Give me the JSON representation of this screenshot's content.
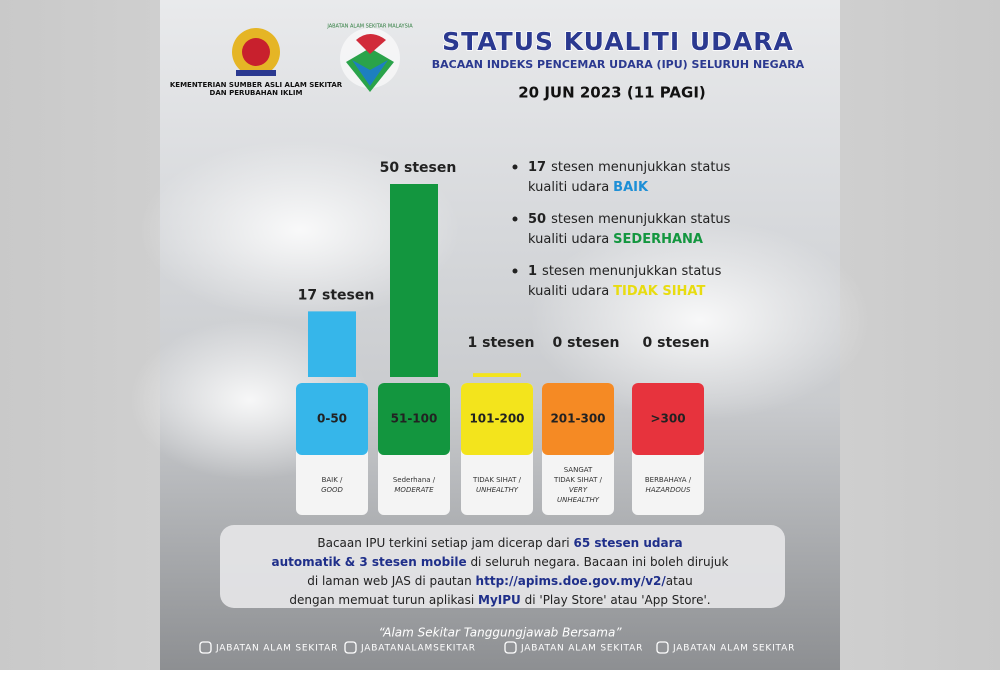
{
  "header": {
    "ministry": [
      "KEMENTERIAN SUMBER ASLI ALAM SEKITAR",
      "DAN PERUBAHAN IKLIM"
    ],
    "logo_ring_text": "JABATAN ALAM SEKITAR MALAYSIA",
    "title": "STATUS KUALITI UDARA",
    "subtitle": "BACAAN INDEKS PENCEMAR UDARA (IPU) SELURUH NEGARA",
    "date": "20 JUN 2023 (11 PAGI)"
  },
  "chart_data": {
    "type": "bar",
    "categories": [
      "0-50",
      "51-100",
      "101-200",
      "201-300",
      ">300"
    ],
    "values": [
      17,
      50,
      1,
      0,
      0
    ],
    "value_labels": [
      "17 stesen",
      "50 stesen",
      "1 stesen",
      "0 stesen",
      "0 stesen"
    ],
    "colors": [
      "#36b6ea",
      "#13963f",
      "#f3e41c",
      "#f58a24",
      "#e7333d"
    ],
    "status": [
      {
        "malay": [
          "BAIK /"
        ],
        "english": [
          "GOOD"
        ]
      },
      {
        "malay": [
          "Sederhana /"
        ],
        "english": [
          "MODERATE"
        ]
      },
      {
        "malay": [
          "TIDAK SIHAT /"
        ],
        "english": [
          "UNHEALTHY"
        ]
      },
      {
        "malay": [
          "SANGAT",
          "TIDAK SIHAT /"
        ],
        "english": [
          "VERY",
          "UNHEALTHY"
        ]
      },
      {
        "malay": [
          "BERBAHAYA /"
        ],
        "english": [
          "HAZARDOUS"
        ]
      }
    ],
    "ylim": [
      0,
      50
    ]
  },
  "bullets": [
    {
      "count": "17",
      "text": "stesen menunjukkan status",
      "text2": "kualiti udara",
      "status": "BAIK",
      "color": "#1d8fd6"
    },
    {
      "count": "50",
      "text": "stesen menunjukkan status",
      "text2": "kualiti udara",
      "status": "SEDERHANA",
      "color": "#13963f"
    },
    {
      "count": "1",
      "text": "stesen menunjukkan status",
      "text2": "kualiti udara",
      "status": "TIDAK SIHAT",
      "color": "#e8dc10"
    }
  ],
  "note": {
    "lines": [
      [
        {
          "text": "Bacaan IPU terkini setiap jam dicerap dari "
        },
        {
          "text": "65 stesen udara",
          "strong": true
        }
      ],
      [
        {
          "text": "automatik & 3 stesen mobile",
          "strong": true
        },
        {
          "text": " di seluruh negara. Bacaan ini boleh dirujuk"
        }
      ],
      [
        {
          "text": "di laman web JAS di pautan "
        },
        {
          "text": "http://apims.doe.gov.my/v2/",
          "strong": true
        },
        {
          "text": "atau"
        }
      ],
      [
        {
          "text": "dengan memuat turun aplikasi "
        },
        {
          "text": "MyIPU",
          "strong": true
        },
        {
          "text": " di 'Play Store' atau 'App Store'."
        }
      ]
    ]
  },
  "quote": "“Alam Sekitar Tanggungjawab Bersama”",
  "footer": [
    "JABATAN ALAM SEKITAR",
    "JABATANALAMSEKITAR",
    "JABATAN ALAM SEKITAR",
    "JABATAN ALAM SEKITAR"
  ]
}
